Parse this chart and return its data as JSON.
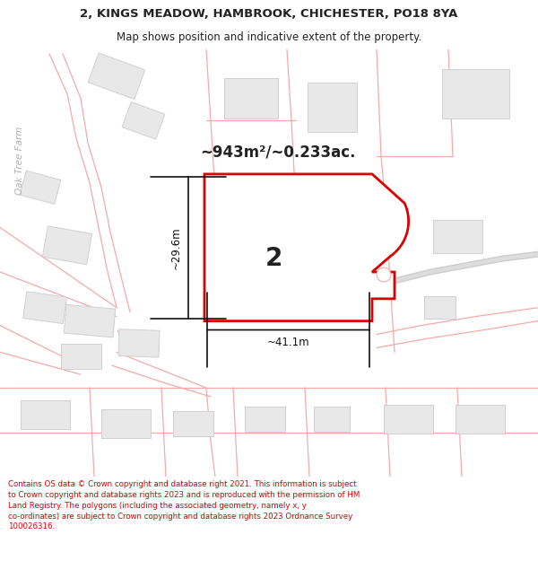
{
  "title_line1": "2, KINGS MEADOW, HAMBROOK, CHICHESTER, PO18 8YA",
  "title_line2": "Map shows position and indicative extent of the property.",
  "area_text": "~943m²/~0.233ac.",
  "label_number": "2",
  "dim_height": "~29.6m",
  "dim_width": "~41.1m",
  "footer_text": "Contains OS data © Crown copyright and database right 2021. This information is subject to Crown copyright and database rights 2023 and is reproduced with the permission of HM Land Registry. The polygons (including the associated geometry, namely x, y co-ordinates) are subject to Crown copyright and database rights 2023 Ordnance Survey 100026316.",
  "bg_color": "#ffffff",
  "map_bg": "#ffffff",
  "road_color": "#f5aaaa",
  "parcel_color": "#f5aaaa",
  "building_fill": "#e8e8e8",
  "building_border": "#d0d0d0",
  "plot_fill": "#ffffff",
  "plot_border": "#dd0000",
  "text_color": "#222222",
  "dim_color": "#111111",
  "footer_color": "#dd0000",
  "oak_tree_color": "#b0b0b0",
  "header_sep_color": "#cccccc"
}
